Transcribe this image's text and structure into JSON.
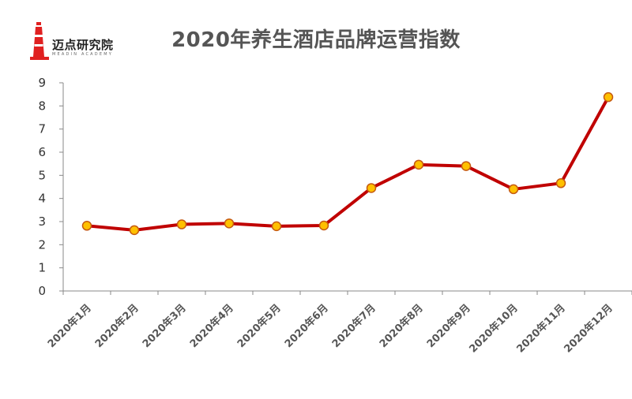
{
  "logo": {
    "name": "迈点研究院",
    "subtitle": "MEADIN ACADEMY",
    "icon": "lighthouse-icon",
    "color": "#e02020"
  },
  "chart_data": {
    "type": "line",
    "title": "2020年养生酒店品牌运营指数",
    "xlabel": "",
    "ylabel": "",
    "ylim": [
      0,
      9
    ],
    "yticks": [
      0,
      1,
      2,
      3,
      4,
      5,
      6,
      7,
      8,
      9
    ],
    "grid": false,
    "categories": [
      "2020年1月",
      "2020年2月",
      "2020年3月",
      "2020年4月",
      "2020年5月",
      "2020年6月",
      "2020年7月",
      "2020年8月",
      "2020年9月",
      "2020年10月",
      "2020年11月",
      "2020年12月"
    ],
    "series": [
      {
        "values": [
          2.82,
          2.63,
          2.88,
          2.92,
          2.8,
          2.83,
          4.45,
          5.46,
          5.4,
          4.4,
          4.66,
          8.38
        ],
        "line_color": "#c00000",
        "marker_fill": "#ffc000",
        "marker_stroke": "#c55a11"
      }
    ]
  }
}
